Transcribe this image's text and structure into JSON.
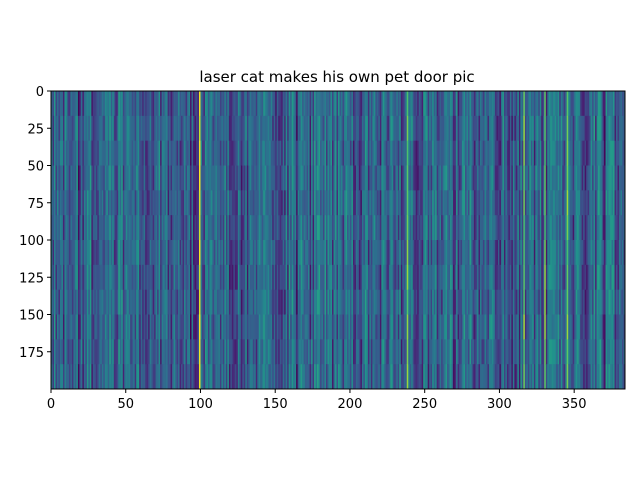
{
  "chart_data": {
    "type": "heatmap",
    "title": "laser cat makes his own pet door pic",
    "xlabel": "",
    "ylabel": "",
    "columns": 384,
    "rows": 200,
    "colormap": "viridis",
    "value_range": [
      0,
      1
    ],
    "xlim": [
      0,
      384
    ],
    "ylim": [
      200,
      0
    ],
    "y_axis_inverted": true,
    "x_ticks": [
      0,
      50,
      100,
      150,
      200,
      250,
      300,
      350
    ],
    "y_ticks": [
      0,
      25,
      50,
      75,
      100,
      125,
      150,
      175
    ],
    "x_tick_labels": [
      "0",
      "50",
      "100",
      "150",
      "200",
      "250",
      "300",
      "350"
    ],
    "y_tick_labels": [
      "0",
      "25",
      "50",
      "75",
      "100",
      "125",
      "150",
      "175"
    ],
    "bright_columns": [
      99,
      316,
      330,
      345,
      238
    ],
    "dark_columns": [
      18,
      93,
      164,
      269,
      370
    ],
    "grid": false,
    "legend": "none",
    "colors": {
      "low": "#440154",
      "mid": "#21918c",
      "high": "#fde725"
    }
  }
}
